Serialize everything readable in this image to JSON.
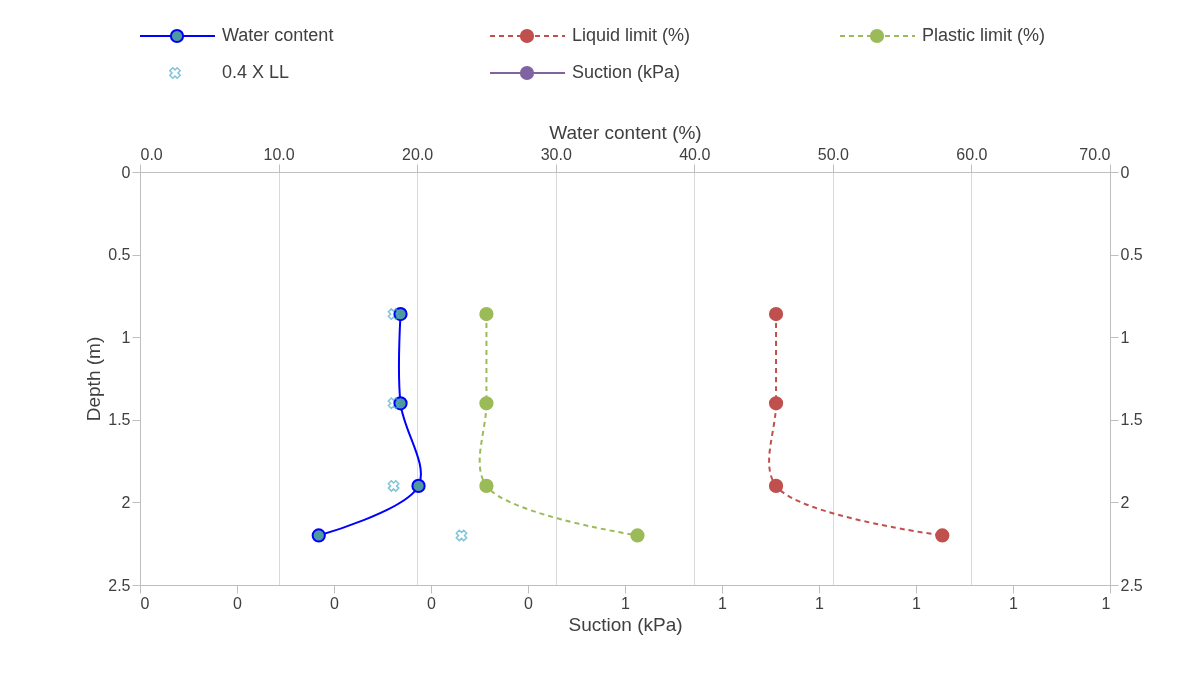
{
  "chart_data": {
    "type": "line",
    "xlabel": "Water content (%)",
    "ylabel": "Depth (m)",
    "x2label": "Suction (kPa)",
    "xlim": [
      0,
      70
    ],
    "xticks": [
      {
        "value": 0,
        "label": "0.0"
      },
      {
        "value": 10,
        "label": "10.0"
      },
      {
        "value": 20,
        "label": "20.0"
      },
      {
        "value": 30,
        "label": "30.0"
      },
      {
        "value": 40,
        "label": "40.0"
      },
      {
        "value": 50,
        "label": "50.0"
      },
      {
        "value": 60,
        "label": "60.0"
      },
      {
        "value": 70,
        "label": "70.0"
      }
    ],
    "x2lim": [
      0,
      1
    ],
    "x2ticks": [
      {
        "value": 0,
        "label": "0"
      },
      {
        "value": 0.1,
        "label": "0"
      },
      {
        "value": 0.2,
        "label": "0"
      },
      {
        "value": 0.3,
        "label": "0"
      },
      {
        "value": 0.4,
        "label": "0"
      },
      {
        "value": 0.5,
        "label": "1"
      },
      {
        "value": 0.6,
        "label": "1"
      },
      {
        "value": 0.7,
        "label": "1"
      },
      {
        "value": 0.8,
        "label": "1"
      },
      {
        "value": 0.9,
        "label": "1"
      },
      {
        "value": 1,
        "label": "1"
      }
    ],
    "ylim": [
      2.5,
      0
    ],
    "yticks": [
      0,
      0.5,
      1,
      1.5,
      2,
      2.5
    ],
    "y2lim": [
      2.5,
      0
    ],
    "y2ticks": [
      0,
      0.5,
      1,
      1.5,
      2,
      2.5
    ],
    "grid": "x",
    "legend": "top",
    "series": [
      {
        "name": "Water content",
        "color": "#0000ff",
        "marker": "circle",
        "line_style": "solid",
        "x": [
          18.8,
          18.8,
          20.1,
          12.9
        ],
        "values": [
          0.86,
          1.4,
          1.9,
          2.2
        ]
      },
      {
        "name": "Liquid limit (%)",
        "color": "#c0504d",
        "marker": "circle",
        "line_style": "dashed",
        "x": [
          45.9,
          45.9,
          45.9,
          57.9
        ],
        "values": [
          0.86,
          1.4,
          1.9,
          2.2
        ]
      },
      {
        "name": "Plastic limit (%)",
        "color": "#9bbb59",
        "marker": "circle",
        "line_style": "dashed",
        "x": [
          25.0,
          25.0,
          25.0,
          35.9
        ],
        "values": [
          0.86,
          1.4,
          1.9,
          2.2
        ]
      },
      {
        "name": "0.4 X LL",
        "type": "scatter",
        "color": "#4bacc6",
        "marker": "cross",
        "x": [
          18.3,
          18.3,
          18.3,
          23.2
        ],
        "values": [
          0.86,
          1.4,
          1.9,
          2.2
        ]
      },
      {
        "name": "Suction (kPa)",
        "color": "#8064a2",
        "marker": "circle",
        "line_style": "solid",
        "axis": "x2"
      }
    ]
  }
}
